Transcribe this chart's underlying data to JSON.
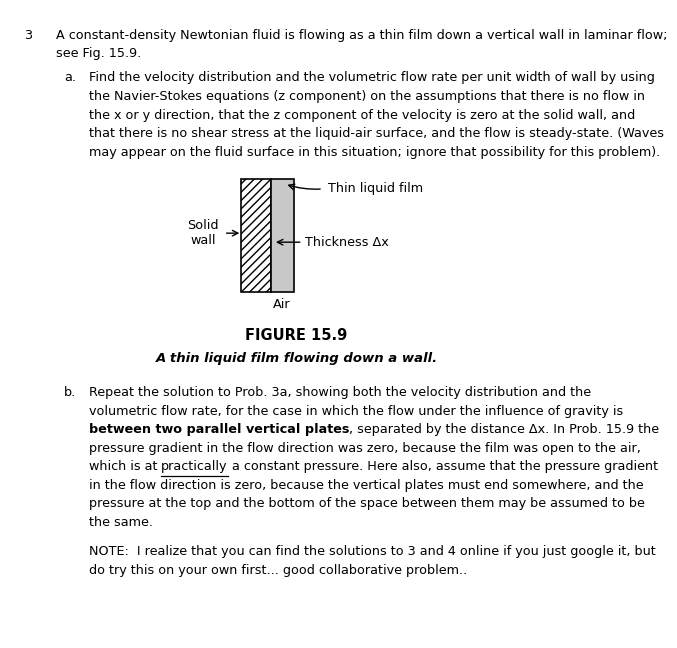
{
  "bg": "#ffffff",
  "fw": 6.16,
  "fh": 6.28,
  "num": "3",
  "main1": "A constant-density Newtonian fluid is flowing as a thin film down a vertical wall in laminar flow;",
  "main2": "see Fig. 15.9.",
  "a_label": "a.",
  "a1": "Find the velocity distribution and the volumetric flow rate per unit width of wall by using",
  "a2": "the Navier-Stokes equations (z component) on the assumptions that there is no flow in",
  "a3": "the x or y direction, that the z component of the velocity is zero at the solid wall, and",
  "a4": "that there is no shear stress at the liquid-air surface, and the flow is steady-state. (Waves",
  "a5": "may appear on the fluid surface in this situation; ignore that possibility for this problem).",
  "fig_bold": "FIGURE 15.9",
  "fig_italic": "A thin liquid film flowing down a wall.",
  "b_label": "b.",
  "b1": "Repeat the solution to Prob. 3a, showing both the velocity distribution and the",
  "b2": "volumetric flow rate, for the case in which the flow under the influence of gravity is",
  "b3_bold": "between two parallel vertical plates",
  "b3_rest": ", separated by the distance Δx. In Prob. 15.9 the",
  "b4": "pressure gradient in the flow direction was zero, because the film was open to the air,",
  "b5a": "which is at ",
  "b5b_under": "practically",
  "b5c": " a constant pressure. Here also, assume that the pressure gradient",
  "b6": "in the flow direction is zero, because the vertical plates must end somewhere, and the",
  "b7": "pressure at the top and the bottom of the space between them may be assumed to be",
  "b8": "the same.",
  "note1": "NOTE:  I realize that you can find the solutions to 3 and 4 online if you just google it, but",
  "note2": "do try this on your own first... good collaborative problem..",
  "sw_label": "Solid\nwall",
  "film_label": "Thin liquid film",
  "thick_label": "Thickness Δx",
  "air_label": "Air",
  "text_color": "#000000"
}
